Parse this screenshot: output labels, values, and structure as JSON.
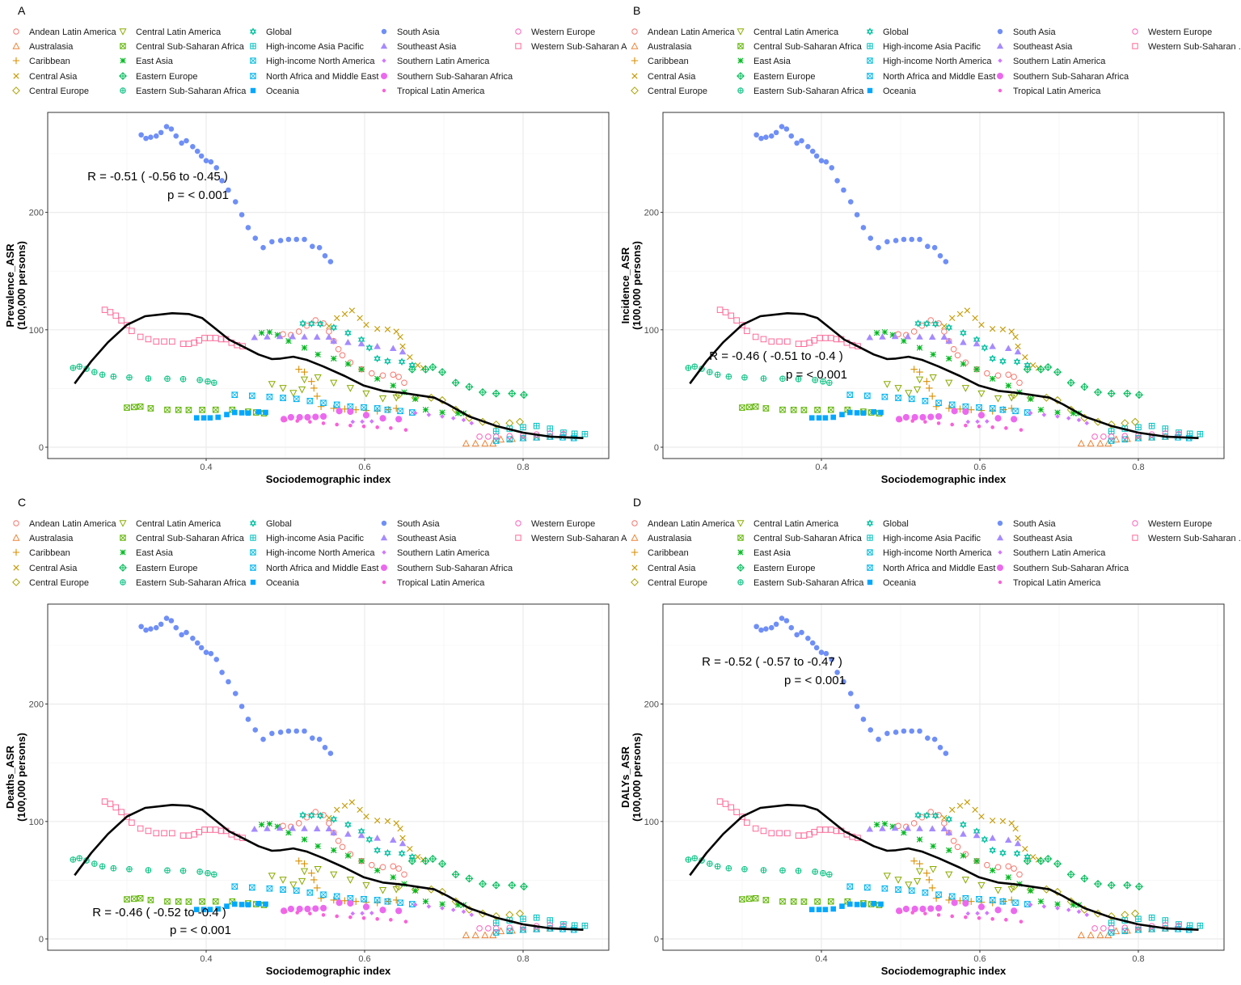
{
  "chart_data": {
    "type": "scatter",
    "xlabel": "Sociodemographic index",
    "xlim": [
      0.2,
      0.908
    ],
    "ylim": [
      -9.4,
      285
    ],
    "xticks": [
      "0.4",
      "0.6",
      "0.8"
    ],
    "yticks": [
      "0",
      "100",
      "200"
    ],
    "grid": true,
    "legend_position": "top",
    "panels": [
      {
        "label": "A",
        "ylabel": "Prevalence_ASR",
        "ylabel_unit": "(100,000 persons)",
        "r_text": "R = -0.51 ( -0.56 to -0.45 )",
        "p_text": "p = < 0.001",
        "last_legend_label": "Western Sub-Saharan A"
      },
      {
        "label": "B",
        "ylabel": "Incidence_ASR",
        "ylabel_unit": "(100,000 persons)",
        "r_text": "R = -0.46 ( -0.51 to -0.4 )",
        "p_text": "p = < 0.001",
        "last_legend_label": "Western Sub-Saharan ."
      },
      {
        "label": "C",
        "ylabel": "Deaths_ASR",
        "ylabel_unit": "(100,000 persons)",
        "r_text": "R = -0.46 ( -0.52 to -0.4 )",
        "p_text": "p = < 0.001",
        "last_legend_label": "Western Sub-Saharan A"
      },
      {
        "label": "D",
        "ylabel": "DALYs_ASR",
        "ylabel_unit": "(100,000 persons)",
        "r_text": "R = -0.52 ( -0.57 to -0.47 )",
        "p_text": "p = < 0.001",
        "last_legend_label": "Western Sub-Saharan ."
      }
    ],
    "smooth": {
      "color": "#000000",
      "x": [
        0.234,
        0.255,
        0.276,
        0.3,
        0.323,
        0.357,
        0.378,
        0.395,
        0.412,
        0.429,
        0.446,
        0.466,
        0.483,
        0.494,
        0.51,
        0.527,
        0.548,
        0.575,
        0.599,
        0.623,
        0.65,
        0.664,
        0.688,
        0.705,
        0.732,
        0.766,
        0.8,
        0.834,
        0.876
      ],
      "y": [
        54.2,
        73.2,
        89.3,
        104.2,
        111.6,
        114.1,
        113.4,
        110,
        100.8,
        91.6,
        85.9,
        79,
        75.1,
        75.5,
        77.1,
        74.4,
        68.7,
        60.6,
        52.5,
        48,
        46.1,
        44.6,
        42.2,
        36.5,
        26.2,
        18.1,
        12.4,
        9.0,
        7.8
      ]
    },
    "series": [
      {
        "name": "Andean Latin America",
        "color": "#F8766D",
        "shape": "circle-open",
        "x": [
          0.497,
          0.507,
          0.517,
          0.527,
          0.538,
          0.548,
          0.555,
          0.561,
          0.567,
          0.572,
          0.582,
          0.596,
          0.609,
          0.623,
          0.636,
          0.643,
          0.65
        ],
        "y": [
          96.2,
          95.5,
          98.5,
          103.5,
          108.1,
          105.4,
          98.5,
          90.4,
          83.5,
          78.3,
          72.1,
          66.3,
          62.9,
          61.1,
          61.8,
          59.9,
          54.9
        ]
      },
      {
        "name": "Australasia",
        "color": "#EB8335",
        "shape": "triangle-open",
        "x": [
          0.728,
          0.74,
          0.752,
          0.762,
          0.772,
          0.786,
          0.8,
          0.817,
          0.834
        ],
        "y": [
          3.2,
          3.2,
          3.2,
          3.2,
          6.7,
          7.2,
          7.8,
          8.4,
          9.0
        ]
      },
      {
        "name": "Caribbean",
        "color": "#DA8F00",
        "shape": "plus",
        "x": [
          0.517,
          0.524,
          0.533,
          0.536,
          0.54,
          0.545,
          0.561,
          0.575,
          0.589,
          0.602,
          0.616,
          0.63,
          0.64
        ],
        "y": [
          66.3,
          64,
          56,
          50.3,
          43.4,
          34.6,
          33.1,
          32.5,
          31.9,
          31.3,
          30.8,
          32,
          33.1
        ]
      },
      {
        "name": "Central Asia",
        "color": "#C49A00",
        "shape": "cross",
        "x": [
          0.555,
          0.565,
          0.575,
          0.584,
          0.594,
          0.602,
          0.616,
          0.629,
          0.64,
          0.645,
          0.648,
          0.657,
          0.667,
          0.674
        ],
        "y": [
          103.1,
          110,
          113.4,
          116.4,
          110,
          104.2,
          100.8,
          100.3,
          98.5,
          93.9,
          85.9,
          76.7,
          69.8,
          67.5
        ]
      },
      {
        "name": "Central Europe",
        "color": "#AAA300",
        "shape": "diamond-open",
        "x": [
          0.643,
          0.664,
          0.684,
          0.698,
          0.715,
          0.732,
          0.749,
          0.766,
          0.783,
          0.796
        ],
        "y": [
          44.6,
          42.2,
          42.2,
          40,
          31.9,
          25,
          21.6,
          19.3,
          20.5,
          21.6
        ]
      },
      {
        "name": "Central Latin America",
        "color": "#8AAB00",
        "shape": "triangle-down-open",
        "x": [
          0.483,
          0.497,
          0.51,
          0.521,
          0.524,
          0.541,
          0.561,
          0.582,
          0.602,
          0.623,
          0.64
        ],
        "y": [
          53.7,
          50.3,
          46.1,
          49.1,
          57.6,
          59.4,
          54.8,
          50.3,
          45.7,
          41.5,
          42.2
        ]
      },
      {
        "name": "Central Sub-Saharan Africa",
        "color": "#5EB300",
        "shape": "square-x",
        "x": [
          0.3,
          0.309,
          0.317,
          0.33,
          0.351,
          0.365,
          0.378,
          0.395,
          0.412,
          0.433,
          0.453,
          0.463,
          0.473
        ],
        "y": [
          33.7,
          34.2,
          34.6,
          33.1,
          31.9,
          31.8,
          31.7,
          31.8,
          31.9,
          31.9,
          30.3,
          29.6,
          28.9
        ]
      },
      {
        "name": "East Asia",
        "color": "#00B81F",
        "shape": "asterisk",
        "x": [
          0.47,
          0.48,
          0.49,
          0.504,
          0.524,
          0.541,
          0.561,
          0.579,
          0.596,
          0.616,
          0.636,
          0.65,
          0.664,
          0.677,
          0.698,
          0.718,
          0.725
        ],
        "y": [
          97.3,
          98,
          95.7,
          90.4,
          84.7,
          79,
          75.5,
          70.9,
          66.3,
          58.3,
          52.5,
          46.8,
          41.1,
          31.9,
          29.6,
          28.9,
          28.9
        ]
      },
      {
        "name": "Eastern Europe",
        "color": "#00BC59",
        "shape": "diamond-plus",
        "x": [
          0.66,
          0.677,
          0.686,
          0.698,
          0.715,
          0.732,
          0.749,
          0.766,
          0.786,
          0.801
        ],
        "y": [
          66.3,
          66.3,
          68.2,
          64,
          54.9,
          51.4,
          46.8,
          45.7,
          45.7,
          44.6
        ]
      },
      {
        "name": "Eastern Sub-Saharan Africa",
        "color": "#00BF7F",
        "shape": "circle-plus",
        "x": [
          0.232,
          0.24,
          0.249,
          0.259,
          0.269,
          0.283,
          0.303,
          0.327,
          0.351,
          0.371,
          0.392,
          0.402,
          0.41
        ],
        "y": [
          67.5,
          68.7,
          66.8,
          64,
          61.8,
          60.1,
          59.4,
          58.5,
          58.3,
          58,
          57.2,
          56,
          54.9
        ]
      },
      {
        "name": "Global",
        "color": "#00C0A0",
        "shape": "hourglass",
        "x": [
          0.522,
          0.533,
          0.544,
          0.561,
          0.579,
          0.596,
          0.606,
          0.616,
          0.629,
          0.647,
          0.66
        ],
        "y": [
          105.4,
          105.2,
          104.9,
          101.9,
          97.3,
          91.6,
          84.7,
          75.5,
          73.2,
          72.8,
          69.8
        ]
      },
      {
        "name": "High-income Asia Pacific",
        "color": "#00C0BE",
        "shape": "square-plus",
        "x": [
          0.766,
          0.783,
          0.8,
          0.817,
          0.834,
          0.851,
          0.865,
          0.878
        ],
        "y": [
          13.6,
          15.8,
          17,
          18.1,
          15.8,
          12.4,
          11.5,
          11.2
        ]
      },
      {
        "name": "High-income North America",
        "color": "#00BBD9",
        "shape": "square-x",
        "x": [
          0.766,
          0.783,
          0.8,
          0.817,
          0.834,
          0.85,
          0.864
        ],
        "y": [
          5.5,
          6.7,
          7.8,
          8.4,
          9,
          8.4,
          7.8
        ]
      },
      {
        "name": "North Africa and Middle East",
        "color": "#00B4EF",
        "shape": "square-hourglass",
        "x": [
          0.436,
          0.458,
          0.48,
          0.497,
          0.514,
          0.531,
          0.548,
          0.565,
          0.582,
          0.599,
          0.616,
          0.629,
          0.645,
          0.66
        ],
        "y": [
          44.6,
          43.8,
          42.9,
          42,
          41.1,
          39.4,
          37.7,
          36.2,
          34.6,
          33.9,
          33.1,
          31.9,
          30.8,
          29.6
        ]
      },
      {
        "name": "Oceania",
        "color": "#00A8FF",
        "shape": "square-filled",
        "x": [
          0.388,
          0.397,
          0.405,
          0.415,
          0.426,
          0.436,
          0.445,
          0.453,
          0.466,
          0.475
        ],
        "y": [
          25,
          25,
          25,
          25.5,
          27.8,
          29.6,
          29.3,
          29.1,
          30.1,
          29.6
        ]
      },
      {
        "name": "South Asia",
        "color": "#6F8FF7",
        "shape": "circle-filled",
        "x": [
          0.318,
          0.324,
          0.33,
          0.337,
          0.343,
          0.35,
          0.356,
          0.362,
          0.369,
          0.375,
          0.383,
          0.389,
          0.394,
          0.4,
          0.406,
          0.413,
          0.42,
          0.428,
          0.437,
          0.445,
          0.453,
          0.462,
          0.472,
          0.483,
          0.494,
          0.504,
          0.514,
          0.524,
          0.534,
          0.543,
          0.55,
          0.557
        ],
        "y": [
          266,
          263,
          264,
          265,
          268,
          273,
          271,
          265,
          259,
          261,
          256,
          252,
          248,
          244,
          243,
          238,
          227,
          219,
          209,
          198,
          187,
          178,
          170,
          175,
          176,
          177,
          177,
          177,
          171,
          170,
          163,
          158
        ]
      },
      {
        "name": "Southeast Asia",
        "color": "#A58AFF",
        "shape": "triangle-filled",
        "x": [
          0.461,
          0.477,
          0.493,
          0.509,
          0.524,
          0.54,
          0.555,
          0.561,
          0.579,
          0.596,
          0.616,
          0.636,
          0.648
        ],
        "y": [
          93.5,
          94,
          94.4,
          94.2,
          94,
          93.9,
          93.9,
          90.4,
          89.3,
          88.2,
          85.9,
          84.2,
          81.3
        ]
      },
      {
        "name": "Southern Latin America",
        "color": "#D078FF",
        "shape": "diamond-small",
        "x": [
          0.585,
          0.597,
          0.609,
          0.664,
          0.681,
          0.698,
          0.712,
          0.725,
          0.735
        ],
        "y": [
          21.6,
          21.8,
          22,
          29.1,
          27.6,
          26.2,
          24.7,
          23.2,
          20.5
        ]
      },
      {
        "name": "Southern Sub-Saharan Africa",
        "color": "#EC69EF",
        "shape": "circle-big",
        "x": [
          0.498,
          0.507,
          0.518,
          0.528,
          0.538,
          0.548,
          0.568,
          0.582,
          0.602,
          0.623,
          0.643
        ],
        "y": [
          23.9,
          25.5,
          25.5,
          25.5,
          25.8,
          26.2,
          30.8,
          30.3,
          27.3,
          24.6,
          23.9
        ]
      },
      {
        "name": "Tropical Latin America",
        "color": "#FB61D7",
        "shape": "dot-small",
        "x": [
          0.5,
          0.515,
          0.531,
          0.548,
          0.565,
          0.582,
          0.599,
          0.616,
          0.633,
          0.652
        ],
        "y": [
          23.2,
          22.4,
          21.6,
          20.4,
          19.3,
          18.5,
          17.7,
          17,
          16.3,
          14.7
        ]
      },
      {
        "name": "Western Europe",
        "color": "#FF62BC",
        "shape": "circle-open",
        "x": [
          0.745,
          0.756,
          0.766,
          0.783,
          0.8,
          0.817,
          0.834,
          0.851
        ],
        "y": [
          9.0,
          9.0,
          9.0,
          9.5,
          10.1,
          10.9,
          11.7,
          11.2
        ]
      },
      {
        "name": "Western Sub-Saharan Africa",
        "color": "#FF6A98",
        "shape": "square-open",
        "x": [
          0.272,
          0.279,
          0.286,
          0.293,
          0.3,
          0.306,
          0.317,
          0.327,
          0.337,
          0.347,
          0.357,
          0.371,
          0.378,
          0.385,
          0.391,
          0.398,
          0.405,
          0.412,
          0.419,
          0.425,
          0.432,
          0.439,
          0.446
        ],
        "y": [
          117,
          115,
          112,
          108,
          104,
          99,
          94,
          92,
          90,
          90,
          90,
          88,
          88,
          89,
          91,
          93,
          93,
          93,
          92,
          92,
          89,
          87,
          86
        ]
      }
    ]
  }
}
